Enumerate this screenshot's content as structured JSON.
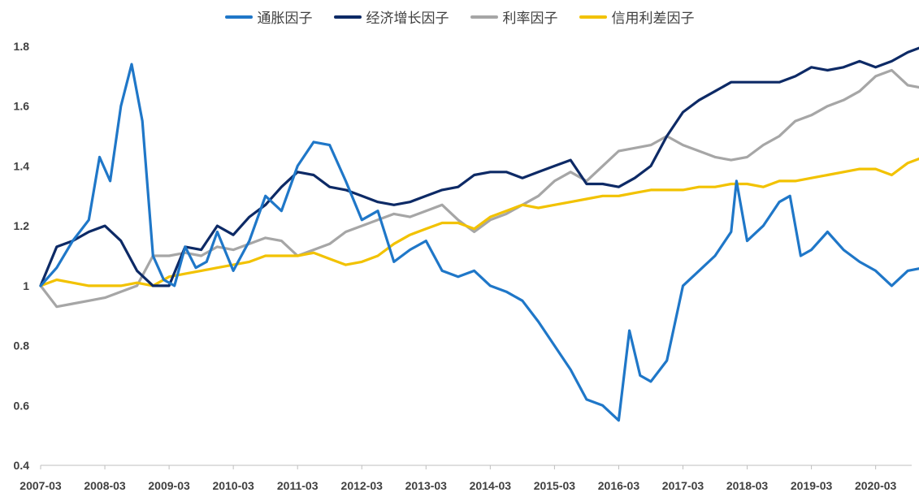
{
  "chart_data": {
    "type": "line",
    "title": "",
    "xlabel": "",
    "ylabel": "",
    "ylim": [
      0.4,
      1.8
    ],
    "yticks": [
      "0.4",
      "0.6",
      "0.8",
      "1",
      "1.2",
      "1.4",
      "1.6",
      "1.8"
    ],
    "xticks": [
      "2007-03",
      "2008-03",
      "2009-03",
      "2010-03",
      "2011-03",
      "2012-03",
      "2013-03",
      "2014-03",
      "2015-03",
      "2016-03",
      "2017-03",
      "2018-03",
      "2019-03",
      "2020-03"
    ],
    "xrange": [
      "2007-03",
      "2020-12"
    ],
    "legend_position": "top",
    "series": [
      {
        "name": "通胀因子",
        "color": "#1F77C8",
        "points": [
          [
            "2007-03",
            1.0
          ],
          [
            "2007-06",
            1.06
          ],
          [
            "2007-09",
            1.15
          ],
          [
            "2007-12",
            1.22
          ],
          [
            "2008-02",
            1.43
          ],
          [
            "2008-04",
            1.35
          ],
          [
            "2008-06",
            1.6
          ],
          [
            "2008-08",
            1.74
          ],
          [
            "2008-10",
            1.55
          ],
          [
            "2008-12",
            1.1
          ],
          [
            "2009-02",
            1.02
          ],
          [
            "2009-04",
            1.0
          ],
          [
            "2009-06",
            1.13
          ],
          [
            "2009-08",
            1.06
          ],
          [
            "2009-10",
            1.08
          ],
          [
            "2009-12",
            1.18
          ],
          [
            "2010-03",
            1.05
          ],
          [
            "2010-06",
            1.15
          ],
          [
            "2010-09",
            1.3
          ],
          [
            "2010-12",
            1.25
          ],
          [
            "2011-03",
            1.4
          ],
          [
            "2011-06",
            1.48
          ],
          [
            "2011-09",
            1.47
          ],
          [
            "2011-12",
            1.35
          ],
          [
            "2012-03",
            1.22
          ],
          [
            "2012-06",
            1.25
          ],
          [
            "2012-09",
            1.08
          ],
          [
            "2012-12",
            1.12
          ],
          [
            "2013-03",
            1.15
          ],
          [
            "2013-06",
            1.05
          ],
          [
            "2013-09",
            1.03
          ],
          [
            "2013-12",
            1.05
          ],
          [
            "2014-03",
            1.0
          ],
          [
            "2014-06",
            0.98
          ],
          [
            "2014-09",
            0.95
          ],
          [
            "2014-12",
            0.88
          ],
          [
            "2015-03",
            0.8
          ],
          [
            "2015-06",
            0.72
          ],
          [
            "2015-09",
            0.62
          ],
          [
            "2015-12",
            0.6
          ],
          [
            "2016-03",
            0.55
          ],
          [
            "2016-05",
            0.85
          ],
          [
            "2016-07",
            0.7
          ],
          [
            "2016-09",
            0.68
          ],
          [
            "2016-12",
            0.75
          ],
          [
            "2017-03",
            1.0
          ],
          [
            "2017-06",
            1.05
          ],
          [
            "2017-09",
            1.1
          ],
          [
            "2017-12",
            1.18
          ],
          [
            "2018-01",
            1.35
          ],
          [
            "2018-03",
            1.15
          ],
          [
            "2018-06",
            1.2
          ],
          [
            "2018-09",
            1.28
          ],
          [
            "2018-11",
            1.3
          ],
          [
            "2019-01",
            1.1
          ],
          [
            "2019-03",
            1.12
          ],
          [
            "2019-06",
            1.18
          ],
          [
            "2019-09",
            1.12
          ],
          [
            "2019-12",
            1.08
          ],
          [
            "2020-03",
            1.05
          ],
          [
            "2020-06",
            1.0
          ],
          [
            "2020-09",
            1.05
          ],
          [
            "2020-12",
            1.06
          ]
        ]
      },
      {
        "name": "经济增长因子",
        "color": "#0D2A66",
        "points": [
          [
            "2007-03",
            1.0
          ],
          [
            "2007-06",
            1.13
          ],
          [
            "2007-09",
            1.15
          ],
          [
            "2007-12",
            1.18
          ],
          [
            "2008-03",
            1.2
          ],
          [
            "2008-06",
            1.15
          ],
          [
            "2008-09",
            1.05
          ],
          [
            "2008-12",
            1.0
          ],
          [
            "2009-03",
            1.0
          ],
          [
            "2009-06",
            1.13
          ],
          [
            "2009-09",
            1.12
          ],
          [
            "2009-12",
            1.2
          ],
          [
            "2010-03",
            1.17
          ],
          [
            "2010-06",
            1.23
          ],
          [
            "2010-09",
            1.27
          ],
          [
            "2010-12",
            1.33
          ],
          [
            "2011-03",
            1.38
          ],
          [
            "2011-06",
            1.37
          ],
          [
            "2011-09",
            1.33
          ],
          [
            "2011-12",
            1.32
          ],
          [
            "2012-03",
            1.3
          ],
          [
            "2012-06",
            1.28
          ],
          [
            "2012-09",
            1.27
          ],
          [
            "2012-12",
            1.28
          ],
          [
            "2013-03",
            1.3
          ],
          [
            "2013-06",
            1.32
          ],
          [
            "2013-09",
            1.33
          ],
          [
            "2013-12",
            1.37
          ],
          [
            "2014-03",
            1.38
          ],
          [
            "2014-06",
            1.38
          ],
          [
            "2014-09",
            1.36
          ],
          [
            "2014-12",
            1.38
          ],
          [
            "2015-03",
            1.4
          ],
          [
            "2015-06",
            1.42
          ],
          [
            "2015-09",
            1.34
          ],
          [
            "2015-12",
            1.34
          ],
          [
            "2016-03",
            1.33
          ],
          [
            "2016-06",
            1.36
          ],
          [
            "2016-09",
            1.4
          ],
          [
            "2016-12",
            1.5
          ],
          [
            "2017-03",
            1.58
          ],
          [
            "2017-06",
            1.62
          ],
          [
            "2017-09",
            1.65
          ],
          [
            "2017-12",
            1.68
          ],
          [
            "2018-03",
            1.68
          ],
          [
            "2018-06",
            1.68
          ],
          [
            "2018-09",
            1.68
          ],
          [
            "2018-12",
            1.7
          ],
          [
            "2019-03",
            1.73
          ],
          [
            "2019-06",
            1.72
          ],
          [
            "2019-09",
            1.73
          ],
          [
            "2019-12",
            1.75
          ],
          [
            "2020-03",
            1.73
          ],
          [
            "2020-06",
            1.75
          ],
          [
            "2020-09",
            1.78
          ],
          [
            "2020-12",
            1.8
          ]
        ]
      },
      {
        "name": "利率因子",
        "color": "#A6A6A6",
        "points": [
          [
            "2007-03",
            1.0
          ],
          [
            "2007-06",
            0.93
          ],
          [
            "2007-09",
            0.94
          ],
          [
            "2007-12",
            0.95
          ],
          [
            "2008-03",
            0.96
          ],
          [
            "2008-06",
            0.98
          ],
          [
            "2008-09",
            1.0
          ],
          [
            "2008-12",
            1.1
          ],
          [
            "2009-03",
            1.1
          ],
          [
            "2009-06",
            1.11
          ],
          [
            "2009-09",
            1.1
          ],
          [
            "2009-12",
            1.13
          ],
          [
            "2010-03",
            1.12
          ],
          [
            "2010-06",
            1.14
          ],
          [
            "2010-09",
            1.16
          ],
          [
            "2010-12",
            1.15
          ],
          [
            "2011-03",
            1.1
          ],
          [
            "2011-06",
            1.12
          ],
          [
            "2011-09",
            1.14
          ],
          [
            "2011-12",
            1.18
          ],
          [
            "2012-03",
            1.2
          ],
          [
            "2012-06",
            1.22
          ],
          [
            "2012-09",
            1.24
          ],
          [
            "2012-12",
            1.23
          ],
          [
            "2013-03",
            1.25
          ],
          [
            "2013-06",
            1.27
          ],
          [
            "2013-09",
            1.22
          ],
          [
            "2013-12",
            1.18
          ],
          [
            "2014-03",
            1.22
          ],
          [
            "2014-06",
            1.24
          ],
          [
            "2014-09",
            1.27
          ],
          [
            "2014-12",
            1.3
          ],
          [
            "2015-03",
            1.35
          ],
          [
            "2015-06",
            1.38
          ],
          [
            "2015-09",
            1.35
          ],
          [
            "2015-12",
            1.4
          ],
          [
            "2016-03",
            1.45
          ],
          [
            "2016-06",
            1.46
          ],
          [
            "2016-09",
            1.47
          ],
          [
            "2016-12",
            1.5
          ],
          [
            "2017-03",
            1.47
          ],
          [
            "2017-06",
            1.45
          ],
          [
            "2017-09",
            1.43
          ],
          [
            "2017-12",
            1.42
          ],
          [
            "2018-03",
            1.43
          ],
          [
            "2018-06",
            1.47
          ],
          [
            "2018-09",
            1.5
          ],
          [
            "2018-12",
            1.55
          ],
          [
            "2019-03",
            1.57
          ],
          [
            "2019-06",
            1.6
          ],
          [
            "2019-09",
            1.62
          ],
          [
            "2019-12",
            1.65
          ],
          [
            "2020-03",
            1.7
          ],
          [
            "2020-06",
            1.72
          ],
          [
            "2020-09",
            1.67
          ],
          [
            "2020-12",
            1.66
          ]
        ]
      },
      {
        "name": "信用利差因子",
        "color": "#F2C200",
        "points": [
          [
            "2007-03",
            1.0
          ],
          [
            "2007-06",
            1.02
          ],
          [
            "2007-09",
            1.01
          ],
          [
            "2007-12",
            1.0
          ],
          [
            "2008-03",
            1.0
          ],
          [
            "2008-06",
            1.0
          ],
          [
            "2008-09",
            1.01
          ],
          [
            "2008-12",
            1.0
          ],
          [
            "2009-03",
            1.03
          ],
          [
            "2009-06",
            1.04
          ],
          [
            "2009-09",
            1.05
          ],
          [
            "2009-12",
            1.06
          ],
          [
            "2010-03",
            1.07
          ],
          [
            "2010-06",
            1.08
          ],
          [
            "2010-09",
            1.1
          ],
          [
            "2010-12",
            1.1
          ],
          [
            "2011-03",
            1.1
          ],
          [
            "2011-06",
            1.11
          ],
          [
            "2011-09",
            1.09
          ],
          [
            "2011-12",
            1.07
          ],
          [
            "2012-03",
            1.08
          ],
          [
            "2012-06",
            1.1
          ],
          [
            "2012-09",
            1.14
          ],
          [
            "2012-12",
            1.17
          ],
          [
            "2013-03",
            1.19
          ],
          [
            "2013-06",
            1.21
          ],
          [
            "2013-09",
            1.21
          ],
          [
            "2013-12",
            1.19
          ],
          [
            "2014-03",
            1.23
          ],
          [
            "2014-06",
            1.25
          ],
          [
            "2014-09",
            1.27
          ],
          [
            "2014-12",
            1.26
          ],
          [
            "2015-03",
            1.27
          ],
          [
            "2015-06",
            1.28
          ],
          [
            "2015-09",
            1.29
          ],
          [
            "2015-12",
            1.3
          ],
          [
            "2016-03",
            1.3
          ],
          [
            "2016-06",
            1.31
          ],
          [
            "2016-09",
            1.32
          ],
          [
            "2016-12",
            1.32
          ],
          [
            "2017-03",
            1.32
          ],
          [
            "2017-06",
            1.33
          ],
          [
            "2017-09",
            1.33
          ],
          [
            "2017-12",
            1.34
          ],
          [
            "2018-03",
            1.34
          ],
          [
            "2018-06",
            1.33
          ],
          [
            "2018-09",
            1.35
          ],
          [
            "2018-12",
            1.35
          ],
          [
            "2019-03",
            1.36
          ],
          [
            "2019-06",
            1.37
          ],
          [
            "2019-09",
            1.38
          ],
          [
            "2019-12",
            1.39
          ],
          [
            "2020-03",
            1.39
          ],
          [
            "2020-06",
            1.37
          ],
          [
            "2020-09",
            1.41
          ],
          [
            "2020-12",
            1.43
          ]
        ]
      }
    ]
  }
}
